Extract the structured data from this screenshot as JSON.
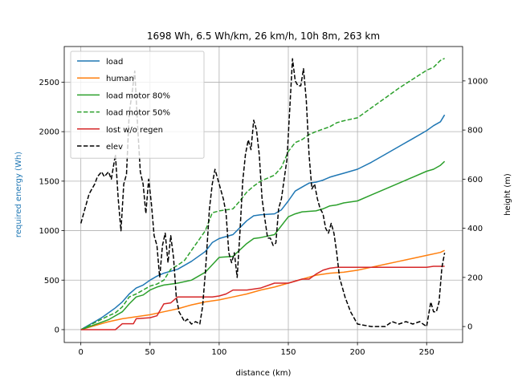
{
  "chart_data": {
    "type": "line",
    "title": "1698 Wh, 6.5 Wh/km, 26 km/h, 10h 8m, 263 km",
    "xlabel": "distance (km)",
    "ylabel_left": "required energy (Wh)",
    "ylabel_right": "height (m)",
    "ylabel_left_color": "#1f77b4",
    "xlim": [
      -12,
      276
    ],
    "ylim_left": [
      -130,
      2860
    ],
    "ylim_right": [
      -65,
      1140
    ],
    "xticks": [
      0,
      50,
      100,
      150,
      200,
      250
    ],
    "yticks_left": [
      0,
      500,
      1000,
      1500,
      2000,
      2500
    ],
    "yticks_right": [
      0,
      200,
      400,
      600,
      800,
      1000
    ],
    "grid": true,
    "legend_position": "top-left",
    "series": [
      {
        "name": "load",
        "color": "#1f77b4",
        "dash": "solid",
        "axis": "left",
        "points": [
          [
            0,
            0
          ],
          [
            5,
            40
          ],
          [
            10,
            80
          ],
          [
            15,
            120
          ],
          [
            20,
            170
          ],
          [
            25,
            220
          ],
          [
            30,
            280
          ],
          [
            35,
            360
          ],
          [
            40,
            420
          ],
          [
            45,
            450
          ],
          [
            50,
            500
          ],
          [
            55,
            540
          ],
          [
            60,
            570
          ],
          [
            65,
            590
          ],
          [
            70,
            610
          ],
          [
            80,
            690
          ],
          [
            90,
            790
          ],
          [
            95,
            880
          ],
          [
            100,
            920
          ],
          [
            110,
            960
          ],
          [
            115,
            1030
          ],
          [
            120,
            1100
          ],
          [
            125,
            1150
          ],
          [
            130,
            1160
          ],
          [
            140,
            1170
          ],
          [
            145,
            1210
          ],
          [
            150,
            1300
          ],
          [
            155,
            1400
          ],
          [
            160,
            1440
          ],
          [
            165,
            1480
          ],
          [
            170,
            1490
          ],
          [
            175,
            1510
          ],
          [
            180,
            1540
          ],
          [
            185,
            1560
          ],
          [
            190,
            1580
          ],
          [
            195,
            1600
          ],
          [
            200,
            1620
          ],
          [
            210,
            1690
          ],
          [
            220,
            1770
          ],
          [
            230,
            1850
          ],
          [
            240,
            1930
          ],
          [
            250,
            2010
          ],
          [
            255,
            2060
          ],
          [
            260,
            2100
          ],
          [
            263,
            2170
          ]
        ]
      },
      {
        "name": "human",
        "color": "#ff7f0e",
        "dash": "solid",
        "axis": "left",
        "points": [
          [
            0,
            0
          ],
          [
            10,
            40
          ],
          [
            20,
            80
          ],
          [
            30,
            110
          ],
          [
            40,
            130
          ],
          [
            50,
            150
          ],
          [
            60,
            180
          ],
          [
            70,
            210
          ],
          [
            80,
            250
          ],
          [
            90,
            280
          ],
          [
            100,
            300
          ],
          [
            110,
            330
          ],
          [
            120,
            360
          ],
          [
            130,
            400
          ],
          [
            140,
            430
          ],
          [
            150,
            470
          ],
          [
            160,
            510
          ],
          [
            170,
            550
          ],
          [
            180,
            570
          ],
          [
            190,
            580
          ],
          [
            200,
            600
          ],
          [
            210,
            630
          ],
          [
            220,
            660
          ],
          [
            230,
            690
          ],
          [
            240,
            720
          ],
          [
            250,
            750
          ],
          [
            260,
            780
          ],
          [
            263,
            800
          ]
        ]
      },
      {
        "name": "load motor 80%",
        "color": "#2ca02c",
        "dash": "solid",
        "axis": "left",
        "points": [
          [
            0,
            0
          ],
          [
            10,
            50
          ],
          [
            20,
            100
          ],
          [
            30,
            180
          ],
          [
            35,
            260
          ],
          [
            40,
            330
          ],
          [
            45,
            350
          ],
          [
            50,
            400
          ],
          [
            55,
            430
          ],
          [
            60,
            450
          ],
          [
            65,
            460
          ],
          [
            70,
            470
          ],
          [
            80,
            500
          ],
          [
            90,
            580
          ],
          [
            100,
            730
          ],
          [
            110,
            740
          ],
          [
            120,
            870
          ],
          [
            125,
            920
          ],
          [
            130,
            930
          ],
          [
            140,
            960
          ],
          [
            150,
            1140
          ],
          [
            155,
            1170
          ],
          [
            160,
            1190
          ],
          [
            170,
            1200
          ],
          [
            175,
            1220
          ],
          [
            180,
            1250
          ],
          [
            185,
            1260
          ],
          [
            190,
            1280
          ],
          [
            195,
            1290
          ],
          [
            200,
            1300
          ],
          [
            210,
            1360
          ],
          [
            220,
            1420
          ],
          [
            230,
            1480
          ],
          [
            240,
            1540
          ],
          [
            250,
            1600
          ],
          [
            255,
            1620
          ],
          [
            260,
            1660
          ],
          [
            263,
            1700
          ]
        ]
      },
      {
        "name": "load motor 50%",
        "color": "#2ca02c",
        "dash": "dashed",
        "axis": "left",
        "points": [
          [
            0,
            0
          ],
          [
            10,
            70
          ],
          [
            20,
            140
          ],
          [
            25,
            170
          ],
          [
            30,
            230
          ],
          [
            35,
            330
          ],
          [
            40,
            360
          ],
          [
            45,
            400
          ],
          [
            50,
            440
          ],
          [
            55,
            460
          ],
          [
            60,
            500
          ],
          [
            65,
            610
          ],
          [
            70,
            650
          ],
          [
            75,
            700
          ],
          [
            80,
            800
          ],
          [
            85,
            900
          ],
          [
            90,
            1000
          ],
          [
            95,
            1180
          ],
          [
            100,
            1200
          ],
          [
            110,
            1220
          ],
          [
            115,
            1300
          ],
          [
            120,
            1390
          ],
          [
            125,
            1450
          ],
          [
            130,
            1500
          ],
          [
            140,
            1560
          ],
          [
            145,
            1640
          ],
          [
            150,
            1800
          ],
          [
            155,
            1890
          ],
          [
            160,
            1920
          ],
          [
            165,
            1970
          ],
          [
            170,
            2000
          ],
          [
            180,
            2050
          ],
          [
            185,
            2090
          ],
          [
            190,
            2110
          ],
          [
            200,
            2140
          ],
          [
            210,
            2240
          ],
          [
            220,
            2340
          ],
          [
            230,
            2440
          ],
          [
            240,
            2530
          ],
          [
            250,
            2620
          ],
          [
            255,
            2650
          ],
          [
            260,
            2720
          ],
          [
            263,
            2740
          ]
        ]
      },
      {
        "name": "lost w/o regen",
        "color": "#d62728",
        "dash": "solid",
        "axis": "left",
        "points": [
          [
            0,
            0
          ],
          [
            25,
            0
          ],
          [
            30,
            60
          ],
          [
            38,
            60
          ],
          [
            40,
            110
          ],
          [
            50,
            120
          ],
          [
            55,
            140
          ],
          [
            60,
            260
          ],
          [
            65,
            270
          ],
          [
            70,
            330
          ],
          [
            80,
            330
          ],
          [
            95,
            330
          ],
          [
            100,
            340
          ],
          [
            105,
            360
          ],
          [
            110,
            400
          ],
          [
            120,
            400
          ],
          [
            130,
            420
          ],
          [
            140,
            470
          ],
          [
            150,
            470
          ],
          [
            160,
            510
          ],
          [
            165,
            510
          ],
          [
            170,
            560
          ],
          [
            175,
            600
          ],
          [
            180,
            620
          ],
          [
            185,
            630
          ],
          [
            250,
            630
          ],
          [
            255,
            640
          ],
          [
            263,
            640
          ]
        ]
      },
      {
        "name": "elev",
        "color": "#000000",
        "dash": "dashed",
        "axis": "right",
        "points": [
          [
            0,
            420
          ],
          [
            3,
            480
          ],
          [
            6,
            540
          ],
          [
            10,
            580
          ],
          [
            12,
            610
          ],
          [
            15,
            630
          ],
          [
            17,
            610
          ],
          [
            20,
            630
          ],
          [
            22,
            600
          ],
          [
            25,
            700
          ],
          [
            27,
            520
          ],
          [
            29,
            390
          ],
          [
            31,
            580
          ],
          [
            33,
            620
          ],
          [
            35,
            870
          ],
          [
            37,
            950
          ],
          [
            39,
            1040
          ],
          [
            41,
            820
          ],
          [
            43,
            630
          ],
          [
            45,
            580
          ],
          [
            47,
            460
          ],
          [
            49,
            600
          ],
          [
            51,
            500
          ],
          [
            53,
            370
          ],
          [
            55,
            330
          ],
          [
            57,
            200
          ],
          [
            59,
            330
          ],
          [
            61,
            380
          ],
          [
            63,
            260
          ],
          [
            65,
            370
          ],
          [
            67,
            280
          ],
          [
            69,
            120
          ],
          [
            71,
            60
          ],
          [
            73,
            40
          ],
          [
            75,
            20
          ],
          [
            77,
            30
          ],
          [
            80,
            10
          ],
          [
            83,
            20
          ],
          [
            86,
            10
          ],
          [
            88,
            80
          ],
          [
            90,
            220
          ],
          [
            93,
            480
          ],
          [
            95,
            580
          ],
          [
            97,
            640
          ],
          [
            99,
            600
          ],
          [
            101,
            560
          ],
          [
            103,
            520
          ],
          [
            105,
            460
          ],
          [
            107,
            300
          ],
          [
            109,
            260
          ],
          [
            111,
            300
          ],
          [
            113,
            200
          ],
          [
            115,
            380
          ],
          [
            117,
            590
          ],
          [
            119,
            700
          ],
          [
            121,
            760
          ],
          [
            123,
            720
          ],
          [
            125,
            840
          ],
          [
            127,
            800
          ],
          [
            129,
            700
          ],
          [
            131,
            520
          ],
          [
            133,
            440
          ],
          [
            135,
            360
          ],
          [
            137,
            360
          ],
          [
            139,
            330
          ],
          [
            141,
            340
          ],
          [
            143,
            480
          ],
          [
            145,
            520
          ],
          [
            147,
            600
          ],
          [
            149,
            680
          ],
          [
            151,
            880
          ],
          [
            153,
            1090
          ],
          [
            155,
            1000
          ],
          [
            157,
            980
          ],
          [
            159,
            980
          ],
          [
            161,
            1050
          ],
          [
            163,
            920
          ],
          [
            165,
            700
          ],
          [
            167,
            560
          ],
          [
            169,
            580
          ],
          [
            171,
            520
          ],
          [
            173,
            480
          ],
          [
            175,
            460
          ],
          [
            177,
            400
          ],
          [
            179,
            380
          ],
          [
            181,
            420
          ],
          [
            183,
            380
          ],
          [
            185,
            300
          ],
          [
            187,
            200
          ],
          [
            189,
            160
          ],
          [
            191,
            120
          ],
          [
            195,
            60
          ],
          [
            200,
            10
          ],
          [
            210,
            0
          ],
          [
            220,
            0
          ],
          [
            225,
            20
          ],
          [
            230,
            10
          ],
          [
            235,
            20
          ],
          [
            240,
            10
          ],
          [
            245,
            20
          ],
          [
            250,
            0
          ],
          [
            253,
            100
          ],
          [
            255,
            60
          ],
          [
            257,
            60
          ],
          [
            259,
            100
          ],
          [
            261,
            240
          ],
          [
            263,
            300
          ]
        ]
      }
    ]
  }
}
